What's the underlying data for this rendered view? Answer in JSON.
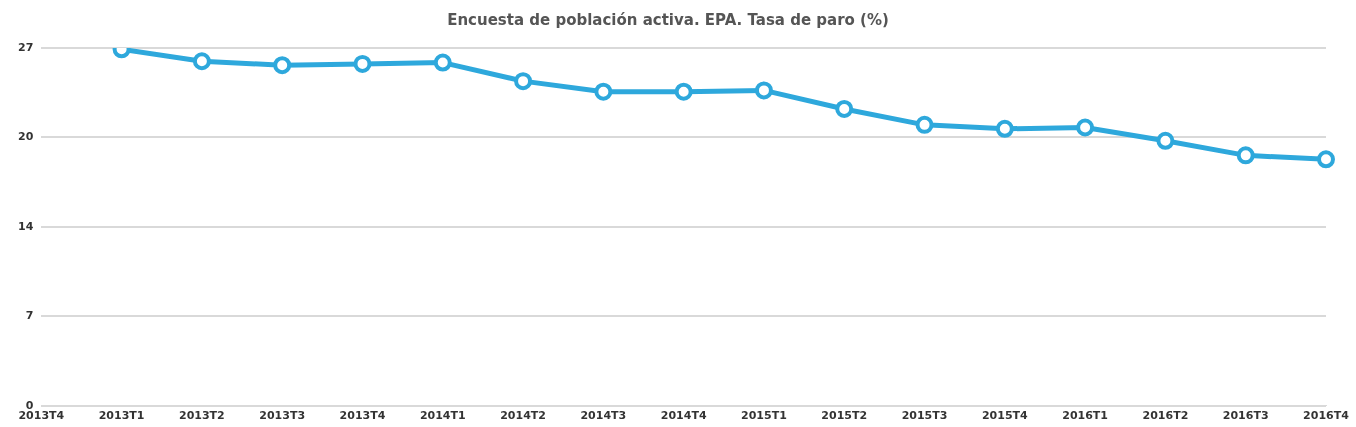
{
  "chart_data": {
    "type": "line",
    "title": "Encuesta de población activa. EPA. Tasa de paro (%)",
    "categories": [
      "2013T4",
      "2013T1",
      "2013T2",
      "2013T3",
      "2013T4",
      "2014T1",
      "2014T2",
      "2014T3",
      "2014T4",
      "2015T1",
      "2015T2",
      "2015T3",
      "2015T4",
      "2016T1",
      "2016T2",
      "2016T3",
      "2016T4"
    ],
    "series": [
      {
        "color": "#2ea8dc",
        "values": [
          null,
          26.9,
          26.0,
          25.7,
          25.8,
          25.9,
          24.5,
          23.7,
          23.7,
          23.8,
          22.4,
          21.2,
          20.9,
          21.0,
          20.0,
          18.9,
          18.6
        ]
      }
    ],
    "ylim": [
      0,
      27
    ],
    "yticks": [
      0,
      {
        "value": 6.75,
        "label": "7"
      },
      {
        "value": 13.5,
        "label": "14"
      },
      {
        "value": 20.25,
        "label": "20"
      },
      27
    ],
    "grid": "y",
    "legend": false,
    "marker": "circle",
    "line_style": "solid"
  }
}
